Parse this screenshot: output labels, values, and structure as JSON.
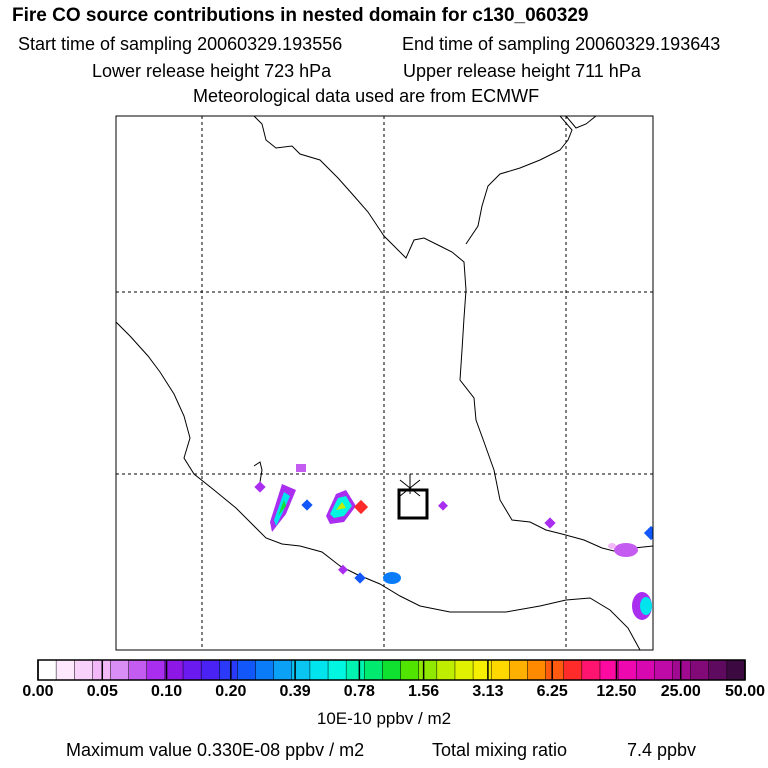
{
  "chart_data": {
    "type": "heatmap",
    "title": "Fire CO source contributions in nested domain for c130_060329",
    "subtitles": {
      "start": "Start time of sampling 20060329.193556",
      "end": "End time of sampling 20060329.193643",
      "lower": "Lower release height  723 hPa",
      "upper": "Upper release height  711 hPa",
      "met": "Meteorological data used are from ECMWF"
    },
    "colorbar": {
      "tick_labels": [
        "0.00",
        "0.05",
        "0.10",
        "0.20",
        "0.39",
        "0.78",
        "1.56",
        "3.13",
        "6.25",
        "12.50",
        "25.00",
        "50.00"
      ],
      "units": "10E-10 ppbv / m2",
      "colors": [
        "#ffffff",
        "#fde8fd",
        "#f9d2fb",
        "#f2b8f7",
        "#d98ef5",
        "#c55cf2",
        "#a92ef0",
        "#8d18e6",
        "#6a1aee",
        "#4a22f4",
        "#2a3af8",
        "#1257fa",
        "#0a7cf8",
        "#0aa1f6",
        "#0ac4f2",
        "#00e4ee",
        "#00f6e0",
        "#00f2b0",
        "#00ea70",
        "#10e030",
        "#50e400",
        "#90e800",
        "#c0ee00",
        "#e0f200",
        "#f6f000",
        "#ffd800",
        "#ffb000",
        "#ff8a00",
        "#ff5a10",
        "#ff2a2a",
        "#ff1470",
        "#ff0aa0",
        "#ee08b0",
        "#d808b0",
        "#c00aa8",
        "#a00a90",
        "#820a78",
        "#5e0a5e",
        "#3c0a40"
      ]
    },
    "grid": true,
    "release_marker": "black square with star at release location",
    "footer": {
      "max_value": "Maximum value  0.330E-08 ppbv / m2",
      "total_label": "Total mixing ratio",
      "total_value": "7.4 ppbv"
    }
  }
}
